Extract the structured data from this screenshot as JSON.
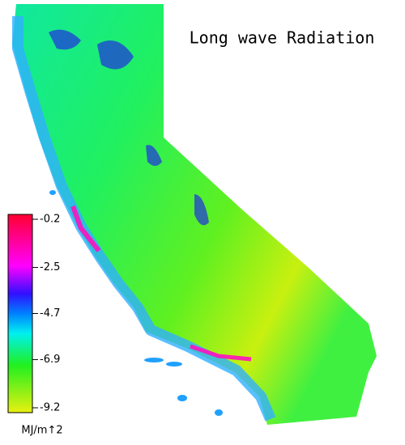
{
  "map": {
    "title": "Long wave Radiation",
    "colorbar": {
      "range": [
        -9.2,
        -0.2
      ],
      "ticks": [
        -0.2,
        -2.5,
        -4.7,
        -6.9,
        -9.2
      ],
      "unit": "MJ/m↑2"
    }
  }
}
